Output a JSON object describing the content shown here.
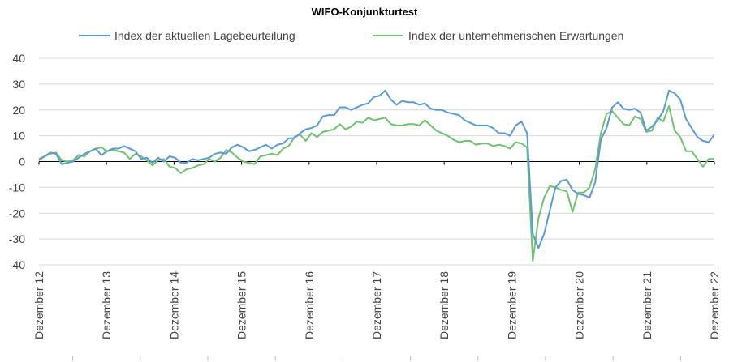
{
  "chart_data": {
    "type": "line",
    "title": "WIFO-Konjunkturtest",
    "xlabel": "",
    "ylabel": "",
    "ylim": [
      -40,
      40
    ],
    "yticks": [
      -40,
      -30,
      -20,
      -10,
      0,
      10,
      20,
      30,
      40
    ],
    "x_tick_labels": [
      "Dezember 12",
      "Dezember 13",
      "Dezember 14",
      "Dezember 15",
      "Dezember 16",
      "Dezember 17",
      "Dezember 18",
      "Dezember 19",
      "Dezember 20",
      "Dezember 21",
      "Dezember 22"
    ],
    "x_start": "2012-12",
    "x_end": "2022-12",
    "legend_position": "top",
    "grid": "horizontal",
    "series": [
      {
        "name": "Index der aktuellen Lagebeurteilung",
        "color": "#5b9bd5",
        "values": [
          1,
          2,
          3.5,
          3,
          -1,
          -0.5,
          0,
          1.5,
          3,
          4,
          5,
          2.5,
          4,
          5,
          5,
          6,
          5,
          4,
          1,
          1.5,
          -0.5,
          1.5,
          0,
          2,
          1.5,
          -0.5,
          -0.5,
          1,
          0.5,
          1,
          1.5,
          3,
          3.5,
          3,
          5.5,
          6.5,
          5.5,
          4,
          4.5,
          5.5,
          6.5,
          5,
          6.5,
          7,
          9,
          9,
          11,
          12.5,
          13,
          14,
          17.5,
          18,
          18,
          21,
          21,
          20,
          21,
          22,
          22.5,
          25,
          25.5,
          27.5,
          24,
          22,
          23.5,
          23,
          23,
          22,
          22.5,
          20.5,
          20,
          20,
          19,
          18.5,
          18,
          16,
          15,
          14,
          14,
          14,
          13,
          11,
          11,
          10,
          14,
          15.5,
          11,
          -28,
          -33.5,
          -28,
          -19,
          -10,
          -7.5,
          -7,
          -11,
          -12.5,
          -13,
          -14,
          -8,
          8.5,
          13,
          21,
          23,
          20.5,
          20,
          20.5,
          19,
          12,
          13.5,
          16,
          19.5,
          27.5,
          26.5,
          24,
          16.5,
          13,
          9.5,
          8,
          7.5,
          10.5
        ]
      },
      {
        "name": "Index der unternehmerischen Erwartungen",
        "color": "#70c270",
        "values": [
          0.5,
          2,
          3,
          3.5,
          0.5,
          0,
          0.5,
          2.5,
          2,
          4,
          5,
          5.5,
          4,
          4.5,
          4,
          3.5,
          1,
          3,
          2,
          0.5,
          -1.5,
          0.5,
          1,
          -2,
          -2.5,
          -4.5,
          -3,
          -2.5,
          -1.5,
          -1,
          1,
          0,
          1.5,
          4.5,
          3.5,
          1.5,
          0,
          -0.5,
          -1,
          2,
          2.5,
          3,
          2.5,
          5,
          6,
          9.5,
          10.5,
          8,
          11,
          9.5,
          11.5,
          12,
          12.5,
          14.5,
          12.5,
          13.5,
          15.5,
          15,
          17,
          16,
          16.5,
          17,
          14.5,
          14,
          14,
          14.5,
          14.5,
          14,
          16,
          14,
          12,
          11,
          10,
          8.5,
          7.5,
          8,
          8,
          6.5,
          7,
          7,
          6,
          6.5,
          6,
          5,
          7.5,
          7,
          5.5,
          -38.5,
          -22,
          -14,
          -9.5,
          -10,
          -11,
          -11.5,
          -19.5,
          -12,
          -12,
          -10,
          -3,
          11,
          18.5,
          19.5,
          17,
          14.5,
          14,
          17.5,
          16.5,
          11.5,
          12,
          17,
          15.5,
          21.5,
          12,
          9.5,
          4,
          4,
          1,
          -2,
          1,
          1
        ]
      }
    ]
  }
}
